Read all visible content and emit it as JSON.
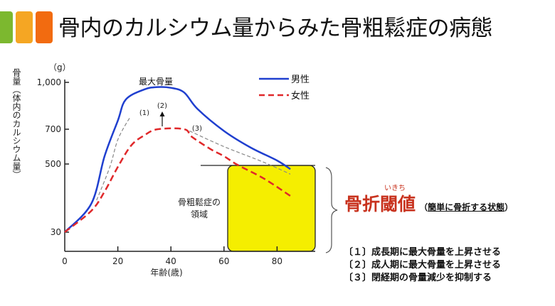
{
  "slide": {
    "title": "骨内のカルシウム量からみた骨粗鬆症の病態",
    "accent_colors": [
      "#7cb82f",
      "#f5a623",
      "#f26b10"
    ]
  },
  "chart_data": {
    "type": "line",
    "ylabel": "骨量（体内のカルシウム量）",
    "yunit": "（g）",
    "xlabel": "年齢(歳)",
    "x_ticks": [
      "0",
      "20",
      "40",
      "60",
      "80"
    ],
    "y_ticks": [
      "30",
      "500",
      "700",
      "1,000"
    ],
    "y_tick_values": [
      30,
      500,
      700,
      1000
    ],
    "xlim": [
      0,
      95
    ],
    "y_scale": "non-linear (piecewise between ticks)",
    "legend_position": "top-right",
    "series": [
      {
        "name": "男性",
        "color": "#1f3fcf",
        "style": "solid",
        "x": [
          0,
          10,
          15,
          20,
          23,
          30,
          35,
          40,
          45,
          50,
          60,
          70,
          80,
          85
        ],
        "y": [
          30,
          226,
          545,
          755,
          890,
          955,
          970,
          965,
          935,
          830,
          690,
          595,
          520,
          465
        ]
      },
      {
        "name": "女性",
        "color": "#e0282a",
        "style": "dashed",
        "x": [
          0,
          10,
          15,
          20,
          25,
          30,
          35,
          45,
          48,
          55,
          60,
          65,
          75,
          85
        ],
        "y": [
          30,
          177,
          310,
          480,
          606,
          665,
          700,
          700,
          655,
          585,
          545,
          495,
          400,
          280
        ]
      }
    ],
    "scenarios": [
      {
        "label": "(1)",
        "x": [
          12,
          17,
          20,
          24,
          25
        ],
        "y": [
          250,
          480,
          640,
          760,
          775
        ]
      },
      {
        "label": "(3)",
        "x": [
          47,
          60,
          75,
          85
        ],
        "y": [
          690,
          600,
          510,
          430
        ]
      }
    ],
    "annotations": {
      "peak": "最大骨量",
      "arrow_label": "(2)",
      "region": "骨粗鬆症の\n領域",
      "region_line1": "骨粗鬆症の",
      "region_line2": "領域",
      "threshold_value": 500
    }
  },
  "threshold": {
    "label": "骨折閾値",
    "ruby": "いきち",
    "description": "簡単に骨折する状態",
    "open_paren": "（",
    "close_paren": "）"
  },
  "notes": [
    "〔１〕成長期に最大骨量を上昇させる",
    "〔２〕成人期に最大骨量を上昇させる",
    "〔３〕閉経期の骨量減少を抑制する"
  ]
}
